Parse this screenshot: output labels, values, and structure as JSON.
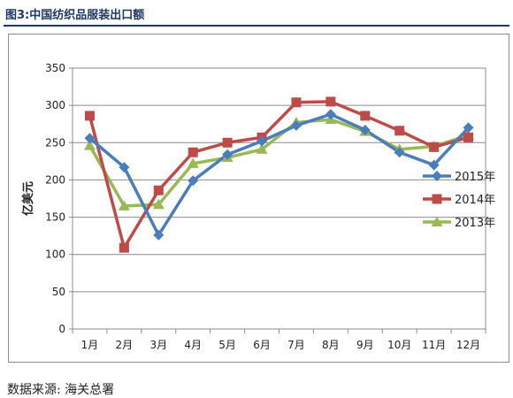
{
  "figure_title": "图3:中国纺织品服装出口额",
  "source_note": "数据来源: 海关总署",
  "chart_data": {
    "type": "line",
    "title": "",
    "xlabel": "",
    "ylabel": "亿美元",
    "categories": [
      "1月",
      "2月",
      "3月",
      "4月",
      "5月",
      "6月",
      "7月",
      "8月",
      "9月",
      "10月",
      "11月",
      "12月"
    ],
    "ylim": [
      0,
      350
    ],
    "yticks": [
      0,
      50,
      100,
      150,
      200,
      250,
      300,
      350
    ],
    "grid": true,
    "legend_position": "right",
    "series": [
      {
        "name": "2015年",
        "color": "#4a7ebb",
        "marker": "diamond",
        "values": [
          256,
          217,
          126,
          199,
          234,
          252,
          273,
          288,
          267,
          237,
          220,
          270
        ]
      },
      {
        "name": "2014年",
        "color": "#be4b48",
        "marker": "square",
        "values": [
          286,
          109,
          186,
          237,
          250,
          257,
          304,
          305,
          286,
          266,
          244,
          257
        ]
      },
      {
        "name": "2013年",
        "color": "#98b954",
        "marker": "triangle",
        "values": [
          246,
          165,
          167,
          222,
          230,
          241,
          277,
          281,
          265,
          241,
          245,
          260
        ]
      }
    ]
  }
}
